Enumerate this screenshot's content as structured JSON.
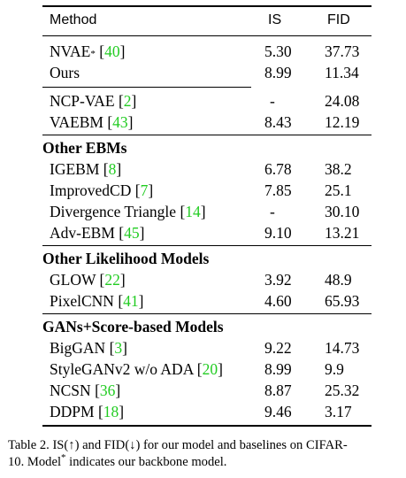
{
  "table": {
    "headers": {
      "method": "Method",
      "is": "IS",
      "fid": "FID"
    },
    "groups": [
      {
        "section": "",
        "rows": [
          {
            "name": "NVAE",
            "star": "*",
            "cite": "40",
            "is": "5.30",
            "fid": "37.73"
          },
          {
            "name": "Ours",
            "star": "",
            "cite": "",
            "is": "8.99",
            "fid": "11.34"
          }
        ]
      },
      {
        "section": "",
        "rows": [
          {
            "name": "NCP-VAE",
            "star": "",
            "cite": "2",
            "is": "-",
            "fid": "24.08"
          },
          {
            "name": "VAEBM",
            "star": "",
            "cite": "43",
            "is": "8.43",
            "fid": "12.19"
          }
        ]
      },
      {
        "section": "Other EBMs",
        "rows": [
          {
            "name": "IGEBM",
            "star": "",
            "cite": "8",
            "is": "6.78",
            "fid": "38.2"
          },
          {
            "name": "ImprovedCD",
            "star": "",
            "cite": "7",
            "is": "7.85",
            "fid": "25.1"
          },
          {
            "name": "Divergence Triangle",
            "star": "",
            "cite": "14",
            "is": "-",
            "fid": "30.10"
          },
          {
            "name": "Adv-EBM",
            "star": "",
            "cite": "45",
            "is": "9.10",
            "fid": "13.21"
          }
        ]
      },
      {
        "section": "Other Likelihood Models",
        "rows": [
          {
            "name": "GLOW",
            "star": "",
            "cite": "22",
            "is": "3.92",
            "fid": "48.9"
          },
          {
            "name": "PixelCNN",
            "star": "",
            "cite": "41",
            "is": "4.60",
            "fid": "65.93"
          }
        ]
      },
      {
        "section": "GANs+Score-based Models",
        "rows": [
          {
            "name": "BigGAN",
            "star": "",
            "cite": "3",
            "is": "9.22",
            "fid": "14.73"
          },
          {
            "name": "StyleGANv2 w/o ADA",
            "star": "",
            "cite": "20",
            "is": "8.99",
            "fid": "9.9"
          },
          {
            "name": "NCSN",
            "star": "",
            "cite": "36",
            "is": "8.87",
            "fid": "25.32"
          },
          {
            "name": "DDPM",
            "star": "",
            "cite": "18",
            "is": "9.46",
            "fid": "3.17"
          }
        ]
      }
    ]
  },
  "caption": {
    "line1": "Table 2. IS(↑) and FID(↓) for our model and baselines on CIFAR-",
    "line2_pre": "10. Model",
    "line2_star": "*",
    "line2_post": " indicates our backbone model."
  },
  "colors": {
    "citation": "#22cc22",
    "text": "#000000"
  }
}
